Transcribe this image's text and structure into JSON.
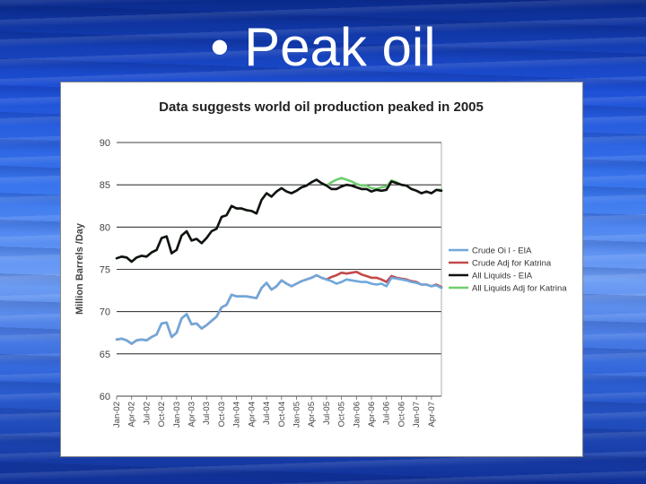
{
  "slide": {
    "title": "• Peak oil"
  },
  "chart_data": {
    "type": "line",
    "title": "Data suggests world oil production peaked in 2005",
    "ylabel": "Million Barrels /Day",
    "xlabel": "",
    "ylim": [
      60,
      90
    ],
    "yticks": [
      "60",
      "65",
      "70",
      "75",
      "80",
      "85",
      "90"
    ],
    "grid": "horizontal",
    "legend_position": "right",
    "x_tick_labels": [
      "Jan-02",
      "Apr-02",
      "Jul-02",
      "Oct-02",
      "Jan-03",
      "Apr-03",
      "Jul-03",
      "Oct-03",
      "Jan-04",
      "Apr-04",
      "Jul-04",
      "Oct-04",
      "Jan-05",
      "Apr-05",
      "Jul-05",
      "Oct-05",
      "Jan-06",
      "Apr-06",
      "Jul-06",
      "Oct-06",
      "Jan-07",
      "Apr-07"
    ],
    "x": [
      "Jan-02",
      "Feb-02",
      "Mar-02",
      "Apr-02",
      "May-02",
      "Jun-02",
      "Jul-02",
      "Aug-02",
      "Sep-02",
      "Oct-02",
      "Nov-02",
      "Dec-02",
      "Jan-03",
      "Feb-03",
      "Mar-03",
      "Apr-03",
      "May-03",
      "Jun-03",
      "Jul-03",
      "Aug-03",
      "Sep-03",
      "Oct-03",
      "Nov-03",
      "Dec-03",
      "Jan-04",
      "Feb-04",
      "Mar-04",
      "Apr-04",
      "May-04",
      "Jun-04",
      "Jul-04",
      "Aug-04",
      "Sep-04",
      "Oct-04",
      "Nov-04",
      "Dec-04",
      "Jan-05",
      "Feb-05",
      "Mar-05",
      "Apr-05",
      "May-05",
      "Jun-05",
      "Jul-05",
      "Aug-05",
      "Sep-05",
      "Oct-05",
      "Nov-05",
      "Dec-05",
      "Jan-06",
      "Feb-06",
      "Mar-06",
      "Apr-06",
      "May-06",
      "Jun-06",
      "Jul-06",
      "Aug-06",
      "Sep-06",
      "Oct-06",
      "Nov-06",
      "Dec-06",
      "Jan-07",
      "Feb-07",
      "Mar-07",
      "Apr-07",
      "May-07",
      "Jun-07"
    ],
    "series": [
      {
        "name": "All Liquids Adj for Katrina",
        "color": "#6fce6f",
        "values": [
          76.3,
          76.5,
          76.4,
          75.9,
          76.4,
          76.6,
          76.5,
          77.0,
          77.3,
          78.7,
          78.9,
          76.9,
          77.3,
          79.0,
          79.5,
          78.4,
          78.6,
          78.1,
          78.7,
          79.5,
          79.8,
          81.2,
          81.4,
          82.5,
          82.2,
          82.2,
          82.0,
          81.9,
          81.6,
          83.2,
          84.0,
          83.6,
          84.2,
          84.6,
          84.2,
          84.0,
          84.3,
          84.7,
          84.9,
          85.3,
          85.6,
          85.2,
          84.9,
          85.3,
          85.6,
          85.8,
          85.6,
          85.4,
          85.1,
          84.9,
          84.9,
          84.6,
          84.5,
          84.7,
          84.8,
          85.5,
          85.3,
          85.0,
          84.9,
          84.5,
          84.3,
          84.0,
          84.2,
          84.0,
          84.4,
          84.4
        ]
      },
      {
        "name": "All Liquids - EIA",
        "color": "#111111",
        "values": [
          76.3,
          76.5,
          76.4,
          75.9,
          76.4,
          76.6,
          76.5,
          77.0,
          77.3,
          78.7,
          78.9,
          76.9,
          77.3,
          79.0,
          79.5,
          78.4,
          78.6,
          78.1,
          78.7,
          79.5,
          79.8,
          81.2,
          81.4,
          82.5,
          82.2,
          82.2,
          82.0,
          81.9,
          81.6,
          83.2,
          84.0,
          83.6,
          84.2,
          84.6,
          84.2,
          84.0,
          84.3,
          84.7,
          84.9,
          85.3,
          85.6,
          85.2,
          84.9,
          84.5,
          84.5,
          84.8,
          85.0,
          84.9,
          84.7,
          84.5,
          84.5,
          84.2,
          84.4,
          84.3,
          84.4,
          85.4,
          85.2,
          85.0,
          84.9,
          84.5,
          84.3,
          84.0,
          84.2,
          84.0,
          84.4,
          84.3
        ]
      },
      {
        "name": "Crude Adj for Katrina",
        "color": "#c44a4a",
        "values": [
          66.7,
          66.8,
          66.6,
          66.2,
          66.6,
          66.7,
          66.6,
          67.0,
          67.3,
          68.6,
          68.7,
          67.0,
          67.5,
          69.2,
          69.7,
          68.5,
          68.6,
          68.0,
          68.4,
          68.9,
          69.4,
          70.5,
          70.8,
          72.0,
          71.8,
          71.8,
          71.8,
          71.7,
          71.6,
          72.8,
          73.4,
          72.6,
          73.0,
          73.7,
          73.3,
          73.0,
          73.3,
          73.6,
          73.8,
          74.0,
          74.3,
          74.0,
          73.8,
          74.1,
          74.3,
          74.6,
          74.5,
          74.6,
          74.7,
          74.4,
          74.2,
          74.0,
          74.0,
          73.8,
          73.5,
          74.2,
          74.0,
          73.9,
          73.8,
          73.6,
          73.5,
          73.2,
          73.2,
          73.0,
          73.2,
          72.9
        ]
      },
      {
        "name": "Crude Oil - EIA",
        "color": "#6fa8dc",
        "values": [
          66.7,
          66.8,
          66.6,
          66.2,
          66.6,
          66.7,
          66.6,
          67.0,
          67.3,
          68.6,
          68.7,
          67.0,
          67.5,
          69.2,
          69.7,
          68.5,
          68.6,
          68.0,
          68.4,
          68.9,
          69.4,
          70.5,
          70.8,
          72.0,
          71.8,
          71.8,
          71.8,
          71.7,
          71.6,
          72.8,
          73.4,
          72.6,
          73.0,
          73.7,
          73.3,
          73.0,
          73.3,
          73.6,
          73.8,
          74.0,
          74.3,
          74.0,
          73.8,
          73.6,
          73.3,
          73.5,
          73.8,
          73.7,
          73.6,
          73.5,
          73.5,
          73.3,
          73.2,
          73.3,
          73.0,
          74.0,
          73.9,
          73.8,
          73.7,
          73.5,
          73.4,
          73.2,
          73.2,
          73.0,
          73.1,
          72.8
        ]
      }
    ],
    "legend_order": [
      "Crude Oil - EIA",
      "Crude Adj for Katrina",
      "All Liquids - EIA",
      "All Liquids Adj for Katrina"
    ],
    "legend_labels": [
      "Crude Oi l - EIA",
      "Crude Adj for Katrina",
      "All Liquids - EIA",
      "All Liquids Adj for Katrina"
    ]
  }
}
